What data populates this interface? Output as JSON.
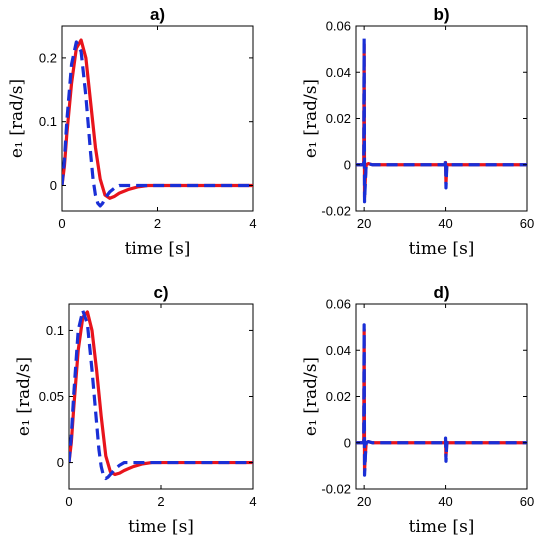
{
  "chart_data": [
    {
      "type": "line",
      "title": "a)",
      "xlabel": "time [s]",
      "ylabel": "e₁ [rad/s]",
      "xlim": [
        0,
        4
      ],
      "ylim": [
        -0.04,
        0.25
      ],
      "xticks": [
        0,
        2,
        4
      ],
      "yticks": [
        0,
        0.1,
        0.2
      ],
      "grid": false,
      "series": [
        {
          "color": "#e8141c",
          "style": "solid",
          "x": [
            0,
            0.05,
            0.1,
            0.2,
            0.3,
            0.4,
            0.5,
            0.6,
            0.7,
            0.8,
            0.9,
            1.0,
            1.1,
            1.2,
            1.4,
            1.6,
            1.8,
            2.0,
            2.5,
            3.0,
            3.5,
            4.0
          ],
          "y": [
            0,
            0.03,
            0.08,
            0.16,
            0.215,
            0.228,
            0.2,
            0.13,
            0.06,
            0.01,
            -0.015,
            -0.02,
            -0.017,
            -0.012,
            -0.006,
            -0.002,
            0,
            0,
            0,
            0,
            0,
            0
          ]
        },
        {
          "color": "#1a2fd6",
          "style": "dashed",
          "x": [
            0,
            0.05,
            0.1,
            0.2,
            0.3,
            0.4,
            0.5,
            0.6,
            0.65,
            0.7,
            0.75,
            0.8,
            0.85,
            0.9,
            1.0,
            1.1,
            1.2,
            1.3,
            1.5,
            1.7,
            2.0,
            2.5,
            3.0,
            3.5,
            4.0
          ],
          "y": [
            0,
            0.04,
            0.1,
            0.19,
            0.225,
            0.21,
            0.14,
            0.05,
            0.01,
            -0.015,
            -0.028,
            -0.032,
            -0.028,
            -0.02,
            -0.01,
            -0.004,
            0,
            0,
            0,
            0,
            0,
            0,
            0,
            0,
            0
          ]
        }
      ]
    },
    {
      "type": "line",
      "title": "b)",
      "xlabel": "time [s]",
      "ylabel": "e₁ [rad/s]",
      "xlim": [
        18,
        60
      ],
      "ylim": [
        -0.02,
        0.06
      ],
      "xticks": [
        20,
        40,
        60
      ],
      "yticks": [
        -0.02,
        0,
        0.02,
        0.04,
        0.06
      ],
      "grid": false,
      "series": [
        {
          "color": "#e8141c",
          "style": "solid",
          "x": [
            18,
            19.9,
            20,
            20.1,
            20.3,
            20.5,
            21,
            22,
            24,
            39.9,
            40,
            40.1,
            40.3,
            42,
            60
          ],
          "y": [
            0,
            0,
            0.052,
            -0.014,
            -0.006,
            0,
            0.0005,
            0,
            0,
            0,
            0.001,
            -0.008,
            0,
            0,
            0
          ]
        },
        {
          "color": "#1a2fd6",
          "style": "dashed",
          "x": [
            18,
            19.9,
            20,
            20.1,
            20.3,
            20.5,
            21,
            22,
            24,
            39.9,
            40,
            40.1,
            40.3,
            42,
            60
          ],
          "y": [
            0,
            0,
            0.055,
            -0.016,
            -0.007,
            0,
            0.0005,
            0,
            0,
            0,
            0.002,
            -0.01,
            0,
            0,
            0
          ]
        }
      ]
    },
    {
      "type": "line",
      "title": "c)",
      "xlabel": "time [s]",
      "ylabel": "e₁ [rad/s]",
      "xlim": [
        0,
        4
      ],
      "ylim": [
        -0.02,
        0.12
      ],
      "xticks": [
        0,
        2,
        4
      ],
      "yticks": [
        0,
        0.05,
        0.1
      ],
      "grid": false,
      "series": [
        {
          "color": "#e8141c",
          "style": "solid",
          "x": [
            0,
            0.05,
            0.1,
            0.2,
            0.3,
            0.4,
            0.5,
            0.6,
            0.7,
            0.8,
            0.9,
            1.0,
            1.1,
            1.2,
            1.4,
            1.6,
            1.8,
            2.0,
            2.5,
            3.0,
            3.5,
            4.0
          ],
          "y": [
            0,
            0.015,
            0.04,
            0.085,
            0.11,
            0.114,
            0.1,
            0.07,
            0.035,
            0.005,
            -0.007,
            -0.009,
            -0.008,
            -0.006,
            -0.003,
            -0.001,
            0,
            0,
            0,
            0,
            0,
            0
          ]
        },
        {
          "color": "#1a2fd6",
          "style": "dashed",
          "x": [
            0,
            0.05,
            0.1,
            0.2,
            0.3,
            0.4,
            0.5,
            0.6,
            0.65,
            0.7,
            0.75,
            0.8,
            0.85,
            0.9,
            1.0,
            1.1,
            1.2,
            1.3,
            1.5,
            1.7,
            2.0,
            2.5,
            3.0,
            3.5,
            4.0
          ],
          "y": [
            0,
            0.02,
            0.05,
            0.1,
            0.115,
            0.105,
            0.07,
            0.03,
            0.01,
            -0.003,
            -0.01,
            -0.012,
            -0.011,
            -0.009,
            -0.005,
            -0.002,
            0,
            0,
            0,
            0,
            0,
            0,
            0,
            0,
            0
          ]
        }
      ]
    },
    {
      "type": "line",
      "title": "d)",
      "xlabel": "time [s]",
      "ylabel": "e₁ [rad/s]",
      "xlim": [
        18,
        60
      ],
      "ylim": [
        -0.02,
        0.06
      ],
      "xticks": [
        20,
        40,
        60
      ],
      "yticks": [
        -0.02,
        0,
        0.02,
        0.04,
        0.06
      ],
      "grid": false,
      "series": [
        {
          "color": "#e8141c",
          "style": "solid",
          "x": [
            18,
            19.9,
            20,
            20.1,
            20.3,
            20.5,
            21,
            22,
            24,
            39.9,
            40,
            40.1,
            40.3,
            42,
            60
          ],
          "y": [
            0,
            0,
            0.049,
            -0.012,
            -0.005,
            0,
            0.0005,
            0,
            0,
            0,
            0.001,
            -0.006,
            0,
            0,
            0
          ]
        },
        {
          "color": "#1a2fd6",
          "style": "dashed",
          "x": [
            18,
            19.9,
            20,
            20.1,
            20.3,
            20.5,
            21,
            22,
            24,
            39.9,
            40,
            40.1,
            40.3,
            42,
            60
          ],
          "y": [
            0,
            0,
            0.051,
            -0.014,
            -0.006,
            0,
            0.0005,
            0,
            0,
            0,
            0.002,
            -0.008,
            0,
            0,
            0
          ]
        }
      ]
    }
  ]
}
